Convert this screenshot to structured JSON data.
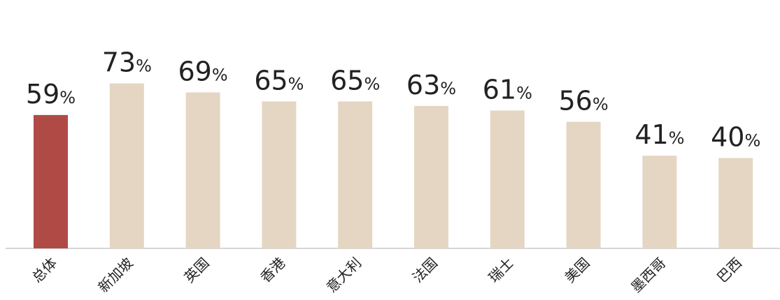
{
  "chart_data": {
    "type": "bar",
    "title": "",
    "xlabel": "",
    "ylabel": "",
    "ylim": [
      0,
      78
    ],
    "categories": [
      "总体",
      "新加坡",
      "英国",
      "香港",
      "意大利",
      "法国",
      "瑞士",
      "美国",
      "墨西哥",
      "巴西"
    ],
    "values": [
      59,
      73,
      69,
      65,
      65,
      63,
      61,
      56,
      41,
      40
    ],
    "value_labels": [
      "59",
      "73",
      "69",
      "65",
      "65",
      "63",
      "61",
      "56",
      "41",
      "40"
    ],
    "value_suffix": "%",
    "highlight_index": 0,
    "colors": {
      "highlight": "#b04a45",
      "default": "#e5d6c3",
      "axis": "#c8c8c8",
      "text": "#222222"
    },
    "grid": false,
    "legend": "none"
  }
}
